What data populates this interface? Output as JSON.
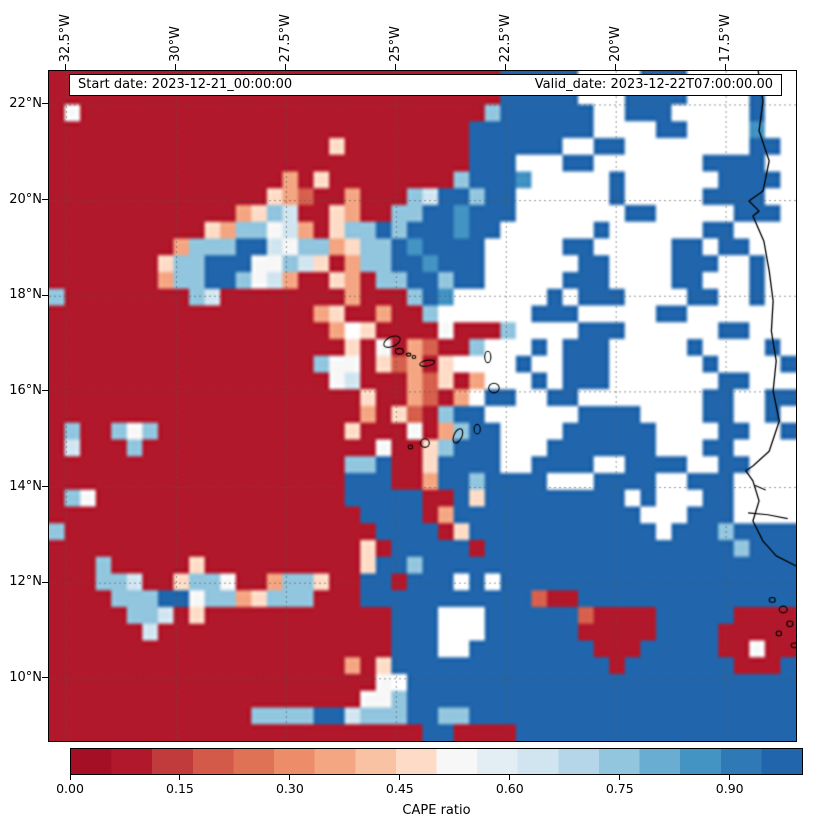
{
  "annotations": {
    "start_date": "Start date: 2023-12-21_00:00:00",
    "valid_date": "Valid_date: 2023-12-22T07:00:00.00"
  },
  "axes": {
    "extent": {
      "lon_min": -32.9,
      "lon_max": -15.91,
      "lat_min": 8.7,
      "lat_max": 22.71
    },
    "lon_ticks": [
      {
        "label": "32.5°W",
        "value": -32.5
      },
      {
        "label": "30°W",
        "value": -30
      },
      {
        "label": "27.5°W",
        "value": -27.5
      },
      {
        "label": "25°W",
        "value": -25
      },
      {
        "label": "22.5°W",
        "value": -22.5
      },
      {
        "label": "20°W",
        "value": -20
      },
      {
        "label": "17.5°W",
        "value": -17.5
      }
    ],
    "lat_ticks": [
      {
        "label": "22°N",
        "value": 22
      },
      {
        "label": "20°N",
        "value": 20
      },
      {
        "label": "18°N",
        "value": 18
      },
      {
        "label": "16°N",
        "value": 16
      },
      {
        "label": "14°N",
        "value": 14
      },
      {
        "label": "12°N",
        "value": 12
      },
      {
        "label": "10°N",
        "value": 10
      }
    ]
  },
  "colorbar": {
    "label": "CAPE ratio",
    "vmin": 0,
    "vmax": 1,
    "tick_labels": [
      {
        "label": "0.00",
        "value": 0.0
      },
      {
        "label": "0.15",
        "value": 0.15
      },
      {
        "label": "0.30",
        "value": 0.3
      },
      {
        "label": "0.45",
        "value": 0.45
      },
      {
        "label": "0.60",
        "value": 0.6
      },
      {
        "label": "0.75",
        "value": 0.75
      },
      {
        "label": "0.90",
        "value": 0.9
      }
    ],
    "colors": [
      "#a50f26",
      "#b2182b",
      "#c23b3c",
      "#d35948",
      "#df7155",
      "#ec8c68",
      "#f4a582",
      "#f9c3a3",
      "#fddbc7",
      "#f7f7f7",
      "#e2eef4",
      "#d1e5f0",
      "#b4d6e8",
      "#92c5de",
      "#69add2",
      "#4393c3",
      "#2f79b7",
      "#2166ac"
    ]
  },
  "chart_data": {
    "type": "heatmap",
    "variable": "CAPE ratio",
    "value_range": [
      0,
      1
    ],
    "grid": {
      "ncols": 48,
      "nrows": 40,
      "palette": {
        "R": "#b2182b",
        "r": "#d6604d",
        "o": "#f4a582",
        "c": "#fddbc7",
        "w": "#f7f7f7",
        "p": "#d1e5f0",
        "l": "#92c5de",
        "m": "#4393c3",
        "B": "#2166ac",
        ".": "#ffffff"
      },
      "palette_values": {
        "R": 0.02,
        "r": 0.2,
        "o": 0.3,
        "c": 0.4,
        "w": 0.5,
        "p": 0.6,
        "l": 0.7,
        "m": 0.8,
        "B": 0.97,
        ".": null
      },
      "rows": [
        "RRRRRRRRRRRRRRRRRRRRRRRRRRRRRBBBBB....BBB.......",
        "RRRRRRRRRRRRRRRRRRRRRRRRRRRRRBBBBB...BBBB....B..",
        "RwRRRRRRRRRRRRRRRRRRRRRRRRRRlBBBBBB..BBB.....B..",
        "RRRRRRRRRRRRRRRRRRRRRRRRRRRBBBBBBBB....BB....m..",
        "RRRRRRRRRRRRRRRRRRcRRRRRRRRBBBBBB..BB........BB.",
        "RRRRRRRRRRRRRRRRRRRRRRRRRRRBBB...BB.......BBBB..",
        "RRRRRRRRRRRRRRRoRcRRRRRRRRlBBBm.....B......BBBB.",
        "RRRRRRRRRRRRRRcorRRoRRRlpBBlBB......B.....BBBB..",
        "RRRRRRRRRRRRoclpRRcoRRllBBmBBB.......BB.....BBB.",
        "RRRRRRRRRRcollwpoRcllBlBBBmBB......B......BB....",
        "RRRRRRRRolllBBpwllocllBmBBBB.....BB.....BB.BB...",
        "RRRRRRRcllBBBwwlpcRollBBmBBB......BB....BBB..B..",
        "RRRRRRRollBBlwpoRRcoRllBBlBB.....BBB....BB...B..",
        "lRRRRRRRRlpRRRRRRRRoRRRlBm......B.BBB....BB..B..",
        "RRRRRRRRRRRRRRRRRocRRoRRl......BBB.....BB.......",
        "RRRRRRRRRRRRRRRRRRo.cRRRRwRRRl....BBB......BB...",
        "RRRRRRRRRRRRRRRRRRRcRwRorRRl...B.BBB.....B....B.",
        "RRRRRRRRRRRRRRRRRlwwRcroRc....B..BBB......B....B",
        "RRRRRRRRRRRRRRRRRRwpRRRorcRo...B.BBB.......BB...",
        "RRRRRRRRRRRRRRRRRRRRcRRorRo.BB..BB........BB..BB",
        "RRRRRRRRRRRRRRRRRRRRoRcrRlBB......BBBB....BB..B.",
        "RlRRlwlRRRRRRRRRRRRcRRRwRolBB....BBBBBB....BB..B",
        "RpRRRlRRRRRRRRRRRRRRRwRRclBBB...BBBBBBB...BB....",
        "RRRRRRRRRRRRRRRRRRRllBRRcBBBB..BBBB..BBBB..BB...",
        "RRRRRRRRRRRRRRRRRRRBBBRRoBBlBBBB...BBBB..BBB....",
        "RlwRRRRRRRRRRRRRRRRBBBBBRRBcBBBBBBBBB.B...BB....",
        "RRRRRRRRRRRRRRRRRRRRBBBBRoBBBBBBBBBBBB...BBB....",
        "lRRRRRRRRRRRRRRRRRRRRBBBBRcBBBBBBBBBBBB.BBBlBBBB",
        "RRRRRRRRRRRRRRRRRRRRcRBBBBBRBBBBBBBBBBBBBBBBlBBB",
        "RRRlRRRRRcRRRRRRRRRRcBBlBBBBBBBBBBBBBBBBBBBBBBBB",
        "RRRllpRRcllwRRollcRRBBRBBB.B.BBBBBBBBBBBBBBBBBBB",
        "RRRRlllBBwlloclllRRRBBBBBBBBBBBrRRBBBBBBBBBBBBBB",
        "RRRRRllpRcRRRRRRRRRRRRBBB...BBBBBBrRRRRBBBBBRRRR",
        "RRRRRRpRRRRRRRRRRRRRRRBBB...BBBBBBRRRRRBBBBRRRRR",
        "RRRRRRRRRRRRRRRRRRRRRRBBB..BBBBBBBBRRRBBBBBRRwRR",
        "RRRRRRRRRRRRRRRRRRRoRcBBBBBBBBBBBBBBRBBBBBBBRRRB",
        "RRRRRRRRRRRRRRRRRRRRRw.BBBBBBBBBBBBBBBBBBBBBBBBB",
        "RRRRRRRRRRRRRRRRRRRRwwlBBBBBBBBBBBBBBBBBBBBBBBBB",
        "RRRRRRRRRRRRRllllBBplllBBllBBBBBBBBBBBBBBBBBBBBB",
        "RRRRRRRRRRRRRRRRRRRRRRRRBBRRRRBBBBBBBBBBBBBBBBBB"
      ]
    },
    "coastline": [
      [
        -16.77,
        22.71
      ],
      [
        -16.66,
        22.08
      ],
      [
        -16.75,
        21.46
      ],
      [
        -16.52,
        20.83
      ],
      [
        -16.66,
        20.2
      ],
      [
        -16.98,
        19.99
      ],
      [
        -16.75,
        19.78
      ],
      [
        -16.89,
        19.68
      ],
      [
        -16.64,
        19.15
      ],
      [
        -16.52,
        18.53
      ],
      [
        -16.43,
        17.9
      ],
      [
        -16.47,
        17.27
      ],
      [
        -16.36,
        16.65
      ],
      [
        -16.43,
        16.02
      ],
      [
        -16.29,
        15.39
      ],
      [
        -16.52,
        14.76
      ],
      [
        -16.89,
        14.45
      ],
      [
        -17.05,
        14.35
      ],
      [
        -16.89,
        14.14
      ],
      [
        -16.75,
        13.72
      ],
      [
        -16.89,
        13.3
      ],
      [
        -16.66,
        12.88
      ],
      [
        -16.36,
        12.57
      ],
      [
        -15.91,
        12.36
      ]
    ],
    "islands": [
      {
        "name": "santo-antao",
        "lon": -25.1,
        "lat": 17.05,
        "rx": 0.2,
        "ry": 0.1,
        "rot": -25
      },
      {
        "name": "sao-vicente",
        "lon": -24.93,
        "lat": 16.85,
        "rx": 0.09,
        "ry": 0.06,
        "rot": 0
      },
      {
        "name": "santa-luzia",
        "lon": -24.72,
        "lat": 16.78,
        "rx": 0.05,
        "ry": 0.03,
        "rot": 0
      },
      {
        "name": "branco",
        "lon": -24.6,
        "lat": 16.73,
        "rx": 0.04,
        "ry": 0.03,
        "rot": 0
      },
      {
        "name": "sao-nicolau",
        "lon": -24.3,
        "lat": 16.6,
        "rx": 0.17,
        "ry": 0.06,
        "rot": -10
      },
      {
        "name": "sal",
        "lon": -22.92,
        "lat": 16.73,
        "rx": 0.07,
        "ry": 0.12,
        "rot": 0
      },
      {
        "name": "boa-vista",
        "lon": -22.78,
        "lat": 16.08,
        "rx": 0.12,
        "ry": 0.1,
        "rot": 0
      },
      {
        "name": "maio",
        "lon": -23.16,
        "lat": 15.22,
        "rx": 0.07,
        "ry": 0.1,
        "rot": 0
      },
      {
        "name": "santiago",
        "lon": -23.6,
        "lat": 15.08,
        "rx": 0.09,
        "ry": 0.16,
        "rot": 25
      },
      {
        "name": "fogo",
        "lon": -24.35,
        "lat": 14.93,
        "rx": 0.1,
        "ry": 0.09,
        "rot": 0
      },
      {
        "name": "brava",
        "lon": -24.68,
        "lat": 14.85,
        "rx": 0.05,
        "ry": 0.04,
        "rot": 0
      },
      {
        "name": "islet",
        "lon": -16.45,
        "lat": 11.65,
        "rx": 0.07,
        "ry": 0.05,
        "rot": 0
      },
      {
        "name": "islet",
        "lon": -16.2,
        "lat": 11.45,
        "rx": 0.09,
        "ry": 0.07,
        "rot": 0
      },
      {
        "name": "islet",
        "lon": -16.05,
        "lat": 11.15,
        "rx": 0.07,
        "ry": 0.06,
        "rot": 0
      },
      {
        "name": "islet",
        "lon": -16.3,
        "lat": 10.95,
        "rx": 0.06,
        "ry": 0.05,
        "rot": 0
      },
      {
        "name": "islet",
        "lon": -15.95,
        "lat": 10.7,
        "rx": 0.07,
        "ry": 0.05,
        "rot": 0
      }
    ],
    "contours": [
      [
        [
          -17.0,
          13.47
        ],
        [
          -16.55,
          13.43
        ],
        [
          -16.1,
          13.35
        ]
      ],
      [
        [
          -16.85,
          14.05
        ],
        [
          -16.6,
          13.95
        ]
      ]
    ]
  }
}
